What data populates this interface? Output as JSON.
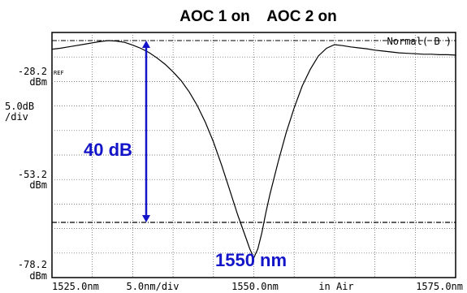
{
  "chart_data": {
    "type": "line",
    "title": "AOC 1 on    AOC 2 on",
    "mode_label": "Normal( B )",
    "ref_marker": "REF",
    "y_axis": {
      "top_label": [
        "-28.2",
        "dBm"
      ],
      "scale_label": [
        "5.0dB",
        "/div"
      ],
      "mid_label": [
        "-53.2",
        "dBm"
      ],
      "bottom_label": [
        "-78.2",
        "dBm"
      ],
      "ylim": [
        -78.2,
        -28.2
      ],
      "divisions": 10
    },
    "x_axis": {
      "labels": [
        "1525.0nm",
        "5.0nm/div",
        "1550.0nm",
        "in Air",
        "1575.0nm"
      ],
      "xlim": [
        1525.0,
        1575.0
      ],
      "divisions": 10
    },
    "grid": true,
    "series": [
      {
        "x": [
          1525.0,
          1526.0,
          1527.0,
          1528.0,
          1529.0,
          1530.0,
          1531.0,
          1532.0,
          1533.0,
          1534.0,
          1535.0,
          1536.0,
          1537.0,
          1538.0,
          1539.0,
          1540.0,
          1541.0,
          1542.0,
          1543.0,
          1544.0,
          1545.0,
          1546.0,
          1547.0,
          1548.0,
          1548.5,
          1549.0,
          1549.5,
          1550.0,
          1550.5,
          1551.0,
          1551.5,
          1552.0,
          1553.0,
          1554.0,
          1555.0,
          1556.0,
          1557.0,
          1558.0,
          1559.0,
          1560.0,
          1561.0,
          1562.0,
          1563.0,
          1564.0,
          1565.0,
          1566.0,
          1567.0,
          1568.0,
          1569.0,
          1570.0,
          1571.0,
          1572.0,
          1573.0,
          1574.0,
          1575.0
        ],
        "y": [
          -30.1,
          -29.9,
          -29.6,
          -29.3,
          -29.0,
          -28.7,
          -28.4,
          -28.2,
          -28.3,
          -28.6,
          -29.2,
          -29.9,
          -30.8,
          -32.0,
          -33.4,
          -35.1,
          -37.0,
          -39.5,
          -42.5,
          -46.2,
          -50.5,
          -55.5,
          -61.0,
          -66.5,
          -69.0,
          -71.5,
          -74.0,
          -76.0,
          -74.0,
          -70.5,
          -66.0,
          -62.0,
          -55.0,
          -48.5,
          -43.0,
          -38.2,
          -34.5,
          -31.6,
          -29.9,
          -29.1,
          -29.3,
          -29.6,
          -29.8,
          -30.0,
          -30.3,
          -30.5,
          -30.7,
          -30.9,
          -31.0,
          -31.1,
          -31.2,
          -31.2,
          -31.3,
          -31.3,
          -31.4
        ]
      }
    ],
    "reference_lines": {
      "upper_dBm": -28.2,
      "lower_dBm": -68.2
    },
    "annotations": [
      {
        "text": "40 dB",
        "color": "#1414c8"
      },
      {
        "text": "1550 nm",
        "color": "#1414c8"
      }
    ],
    "annotation_color": "#1414c8"
  }
}
